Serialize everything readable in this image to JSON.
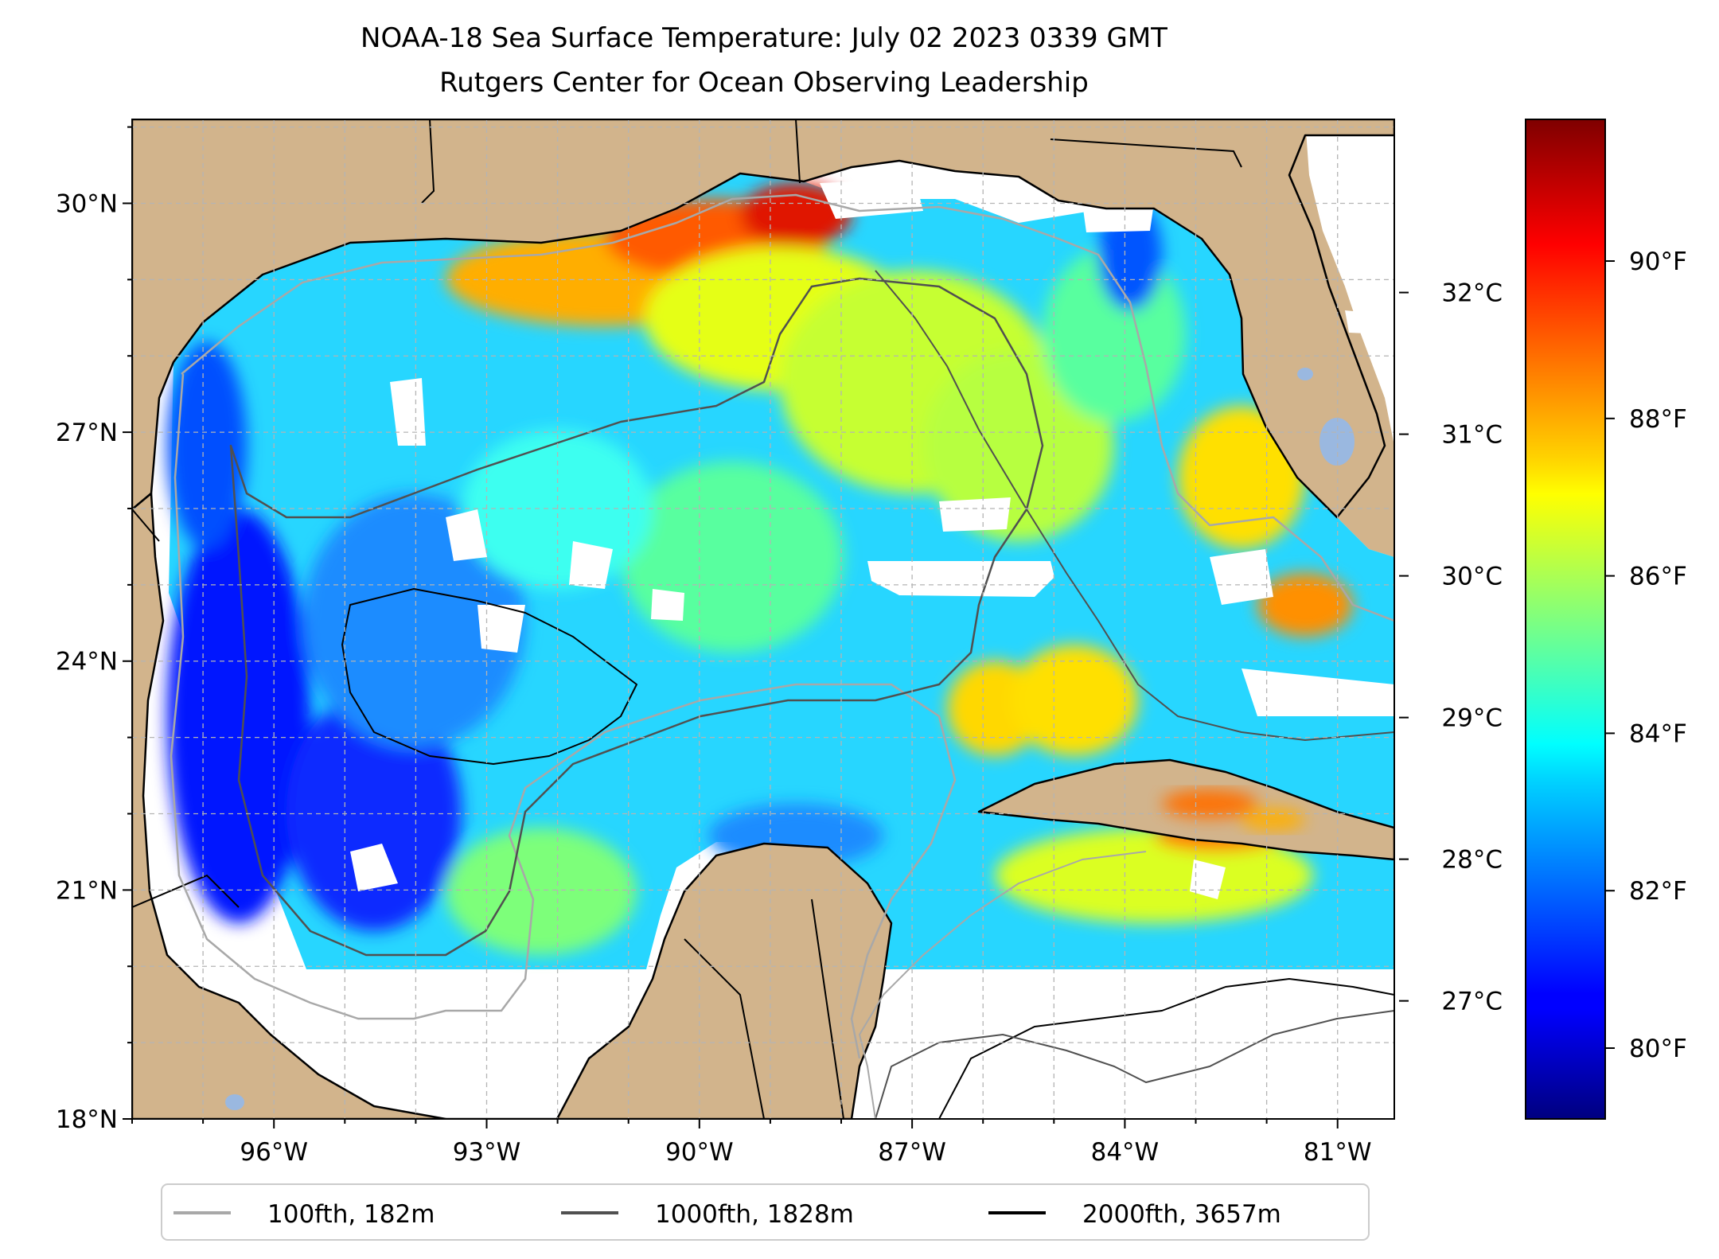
{
  "title": "NOAA-18 Sea Surface Temperature: July 02 2023 0339 GMT",
  "subtitle": "Rutgers Center for Ocean Observing Leadership",
  "map": {
    "lon_range": [
      -98,
      -80.2
    ],
    "lat_range": [
      18,
      31.1
    ],
    "lon_ticks": [
      {
        "value": -96,
        "label": "96°W"
      },
      {
        "value": -93,
        "label": "93°W"
      },
      {
        "value": -90,
        "label": "90°W"
      },
      {
        "value": -87,
        "label": "87°W"
      },
      {
        "value": -84,
        "label": "84°W"
      },
      {
        "value": -81,
        "label": "81°W"
      }
    ],
    "lat_ticks": [
      {
        "value": 18,
        "label": "18°N"
      },
      {
        "value": 21,
        "label": "21°N"
      },
      {
        "value": 24,
        "label": "24°N"
      },
      {
        "value": 27,
        "label": "27°N"
      },
      {
        "value": 30,
        "label": "30°N"
      }
    ],
    "land_color": "#d2b48c",
    "gridlines": true,
    "colormap": "jet"
  },
  "colorbar": {
    "celsius_ticks": [
      {
        "value": 27,
        "label": "27°C"
      },
      {
        "value": 28,
        "label": "28°C"
      },
      {
        "value": 29,
        "label": "29°C"
      },
      {
        "value": 30,
        "label": "30°C"
      },
      {
        "value": 31,
        "label": "31°C"
      },
      {
        "value": 32,
        "label": "32°C"
      }
    ],
    "fahrenheit_ticks": [
      {
        "value": 80,
        "label": "80°F"
      },
      {
        "value": 82,
        "label": "82°F"
      },
      {
        "value": 84,
        "label": "84°F"
      },
      {
        "value": 86,
        "label": "86°F"
      },
      {
        "value": 88,
        "label": "88°F"
      },
      {
        "value": 90,
        "label": "90°F"
      }
    ],
    "range_f": [
      79.1,
      91.8
    ]
  },
  "legend": {
    "placement": "bottom-center",
    "entries": [
      {
        "label": "100fth, 182m",
        "color": "#a8a8a8"
      },
      {
        "label": "1000fth, 1828m",
        "color": "#505050"
      },
      {
        "label": "2000fth, 3657m",
        "color": "#000000"
      }
    ]
  }
}
